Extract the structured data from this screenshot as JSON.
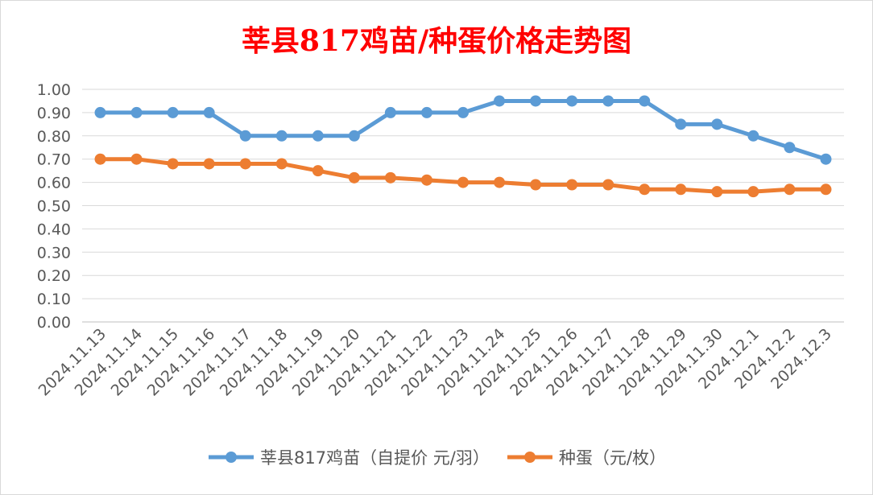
{
  "chart_data": {
    "type": "line",
    "title": "莘县817鸡苗/种蛋价格走势图",
    "categories": [
      "2024.11.13",
      "2024.11.14",
      "2024.11.15",
      "2024.11.16",
      "2024.11.17",
      "2024.11.18",
      "2024.11.19",
      "2024.11.20",
      "2024.11.21",
      "2024.11.22",
      "2024.11.23",
      "2024.11.24",
      "2024.11.25",
      "2024.11.26",
      "2024.11.27",
      "2024.11.28",
      "2024.11.29",
      "2024.11.30",
      "2024.12.1",
      "2024.12.2",
      "2024.12.3"
    ],
    "series": [
      {
        "name": "莘县817鸡苗（自提价 元/羽）",
        "color": "#5b9bd5",
        "values": [
          0.9,
          0.9,
          0.9,
          0.9,
          0.8,
          0.8,
          0.8,
          0.8,
          0.9,
          0.9,
          0.9,
          0.95,
          0.95,
          0.95,
          0.95,
          0.95,
          0.85,
          0.85,
          0.8,
          0.75,
          0.7
        ]
      },
      {
        "name": "种蛋（元/枚）",
        "color": "#ed7d31",
        "values": [
          0.7,
          0.7,
          0.68,
          0.68,
          0.68,
          0.68,
          0.65,
          0.62,
          0.62,
          0.61,
          0.6,
          0.6,
          0.59,
          0.59,
          0.59,
          0.57,
          0.57,
          0.56,
          0.56,
          0.57,
          0.57
        ]
      }
    ],
    "yticks": [
      "0.00",
      "0.10",
      "0.20",
      "0.30",
      "0.40",
      "0.50",
      "0.60",
      "0.70",
      "0.80",
      "0.90",
      "1.00"
    ],
    "ylim": [
      0,
      1.0
    ],
    "grid": true,
    "legend_position": "bottom"
  }
}
